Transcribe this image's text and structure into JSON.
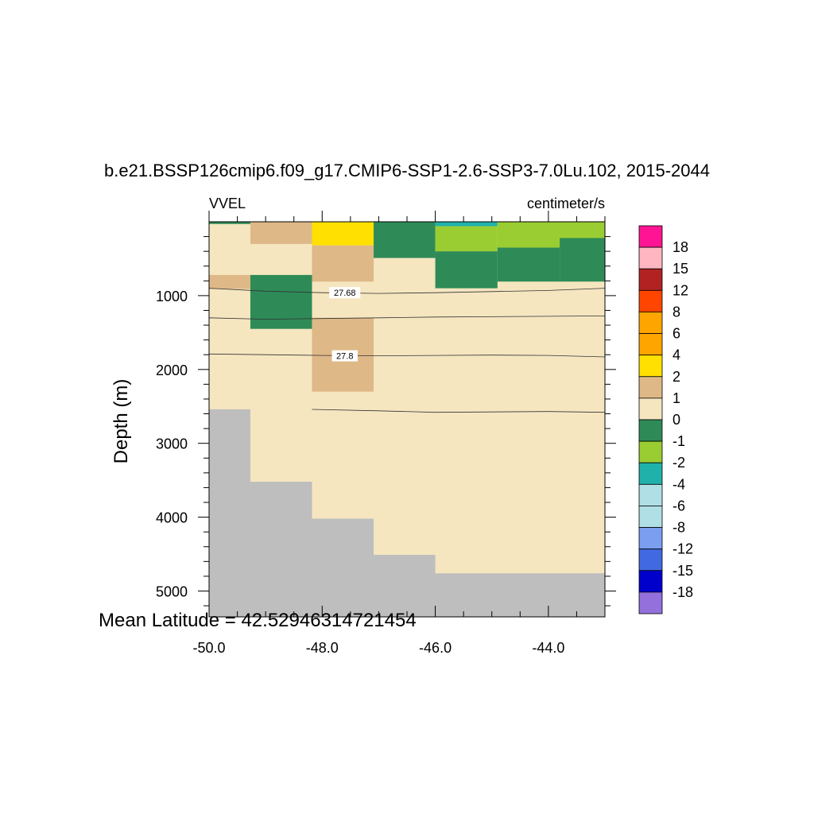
{
  "chart_data": {
    "type": "heatmap",
    "title": "b.e21.BSSP126cmip6.f09_g17.CMIP6-SSP1-2.6-SSP3-7.0Lu.102, 2015-2044",
    "left_label": "VVEL",
    "right_label": "centimeter/s",
    "ylabel": "Depth (m)",
    "xlabel": "",
    "xlim": [
      -50.0,
      -43.0
    ],
    "ylim": [
      0,
      5350
    ],
    "y_inverted": true,
    "x_ticks": [
      -50.0,
      -48.0,
      -46.0,
      -44.0
    ],
    "x_tick_labels": [
      "-50.0",
      "-48.0",
      "-46.0",
      "-44.0"
    ],
    "y_ticks": [
      1000,
      2000,
      3000,
      4000,
      5000
    ],
    "y_tick_labels": [
      "1000",
      "2000",
      "3000",
      "4000",
      "5000"
    ],
    "annotation": "Mean Latitude = 42.52946314721454",
    "missing_color": "#bebebe",
    "background_color": "#f5e6c0",
    "colorbar": {
      "labels": [
        "18",
        "15",
        "12",
        "8",
        "6",
        "4",
        "2",
        "1",
        "0",
        "-1",
        "-2",
        "-4",
        "-6",
        "-8",
        "-12",
        "-15",
        "-18"
      ],
      "colors": [
        "#ff1493",
        "#ffb6c1",
        "#b22222",
        "#ff4500",
        "#ffa500",
        "#ffa500",
        "#ffe000",
        "#deb887",
        "#f5e6c0",
        "#2e8b57",
        "#9acd32",
        "#20b2aa",
        "#b0e0e6",
        "#b0e0e6",
        "#7b9ef0",
        "#4169e1",
        "#0000cd",
        "#9370db"
      ]
    },
    "cells": [
      {
        "x": [
          -50.0,
          -49.27
        ],
        "y": [
          0,
          30
        ],
        "value": -0.5,
        "color": "#2e8b57"
      },
      {
        "x": [
          -49.27,
          -48.18
        ],
        "y": [
          0,
          300
        ],
        "value": 1.5,
        "color": "#deb887"
      },
      {
        "x": [
          -48.18,
          -47.09
        ],
        "y": [
          0,
          320
        ],
        "value": 3,
        "color": "#ffe000"
      },
      {
        "x": [
          -47.09,
          -46.0
        ],
        "y": [
          0,
          490
        ],
        "value": -0.5,
        "color": "#2e8b57"
      },
      {
        "x": [
          -46.0,
          -44.9
        ],
        "y": [
          0,
          60
        ],
        "value": -3,
        "color": "#20b2aa"
      },
      {
        "x": [
          -46.0,
          -44.9
        ],
        "y": [
          60,
          400
        ],
        "value": -1.5,
        "color": "#9acd32"
      },
      {
        "x": [
          -44.9,
          -43.0
        ],
        "y": [
          0,
          350
        ],
        "value": -1.5,
        "color": "#9acd32"
      },
      {
        "x": [
          -46.0,
          -44.9
        ],
        "y": [
          400,
          900
        ],
        "value": -0.5,
        "color": "#2e8b57"
      },
      {
        "x": [
          -44.9,
          -43.8
        ],
        "y": [
          350,
          810
        ],
        "value": -0.5,
        "color": "#2e8b57"
      },
      {
        "x": [
          -43.8,
          -43.0
        ],
        "y": [
          220,
          810
        ],
        "value": -0.5,
        "color": "#2e8b57"
      },
      {
        "x": [
          -48.18,
          -47.09
        ],
        "y": [
          320,
          810
        ],
        "value": 1.5,
        "color": "#deb887"
      },
      {
        "x": [
          -50.0,
          -49.27
        ],
        "y": [
          720,
          910
        ],
        "value": 1.5,
        "color": "#deb887"
      },
      {
        "x": [
          -49.27,
          -48.18
        ],
        "y": [
          720,
          1450
        ],
        "value": -0.5,
        "color": "#2e8b57"
      },
      {
        "x": [
          -48.18,
          -47.09
        ],
        "y": [
          1300,
          2300
        ],
        "value": 1.5,
        "color": "#deb887"
      },
      {
        "x": [
          -50.0,
          -49.27
        ],
        "y": [
          2540,
          5350
        ],
        "value": null,
        "color": "#bebebe"
      },
      {
        "x": [
          -49.27,
          -48.18
        ],
        "y": [
          3520,
          5350
        ],
        "value": null,
        "color": "#bebebe"
      },
      {
        "x": [
          -48.18,
          -47.09
        ],
        "y": [
          4020,
          5350
        ],
        "value": null,
        "color": "#bebebe"
      },
      {
        "x": [
          -47.09,
          -46.0
        ],
        "y": [
          4510,
          5350
        ],
        "value": null,
        "color": "#bebebe"
      },
      {
        "x": [
          -46.0,
          -43.0
        ],
        "y": [
          4760,
          5350
        ],
        "value": null,
        "color": "#bebebe"
      }
    ],
    "contours": [
      {
        "level": "27.68",
        "points": [
          [
            -50.0,
            900
          ],
          [
            -49.0,
            940
          ],
          [
            -48.0,
            960
          ],
          [
            -47.0,
            970
          ],
          [
            -46.0,
            960
          ],
          [
            -45.0,
            945
          ],
          [
            -44.0,
            930
          ],
          [
            -43.0,
            900
          ]
        ],
        "label_at": [
          -47.6,
          960
        ]
      },
      {
        "level": "",
        "points": [
          [
            -50.0,
            1300
          ],
          [
            -49.0,
            1320
          ],
          [
            -48.0,
            1310
          ],
          [
            -47.0,
            1300
          ],
          [
            -46.0,
            1290
          ],
          [
            -45.0,
            1285
          ],
          [
            -44.0,
            1280
          ],
          [
            -43.0,
            1275
          ]
        ],
        "label_at": null
      },
      {
        "level": "27.8",
        "points": [
          [
            -50.0,
            1790
          ],
          [
            -49.0,
            1800
          ],
          [
            -48.0,
            1810
          ],
          [
            -47.0,
            1815
          ],
          [
            -46.0,
            1810
          ],
          [
            -45.0,
            1805
          ],
          [
            -44.0,
            1810
          ],
          [
            -43.0,
            1830
          ]
        ],
        "label_at": [
          -47.6,
          1815
        ]
      },
      {
        "level": "",
        "points": [
          [
            -48.18,
            2540
          ],
          [
            -47.0,
            2560
          ],
          [
            -46.0,
            2580
          ],
          [
            -45.0,
            2575
          ],
          [
            -44.0,
            2570
          ],
          [
            -43.0,
            2580
          ]
        ],
        "label_at": null
      }
    ]
  }
}
